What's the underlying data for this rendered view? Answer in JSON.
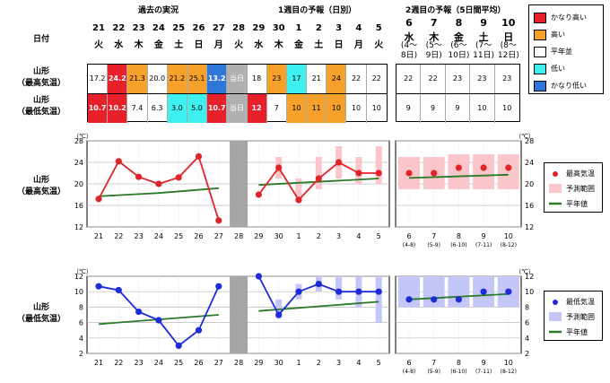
{
  "header": {
    "past_label": "過去の実況",
    "week1_label": "1週目の予報（日別）",
    "week2_label": "2週目の予報（5日間平均）",
    "date_label": "日付"
  },
  "days": [
    {
      "d": "21",
      "w": "火"
    },
    {
      "d": "22",
      "w": "水"
    },
    {
      "d": "23",
      "w": "木"
    },
    {
      "d": "24",
      "w": "金"
    },
    {
      "d": "25",
      "w": "土"
    },
    {
      "d": "26",
      "w": "日"
    },
    {
      "d": "27",
      "w": "月"
    },
    {
      "d": "28",
      "w": "火"
    },
    {
      "d": "29",
      "w": "水"
    },
    {
      "d": "30",
      "w": "木"
    },
    {
      "d": "1",
      "w": "金"
    },
    {
      "d": "2",
      "w": "土"
    },
    {
      "d": "3",
      "w": "日"
    },
    {
      "d": "4",
      "w": "月"
    },
    {
      "d": "5",
      "w": "火"
    }
  ],
  "week2_days": [
    {
      "d": "6",
      "w": "水",
      "l1": "(4～",
      "l2": "8日)"
    },
    {
      "d": "7",
      "w": "木",
      "l1": "(5～",
      "l2": "9日)"
    },
    {
      "d": "8",
      "w": "金",
      "l1": "(6～",
      "l2": "10日)"
    },
    {
      "d": "9",
      "w": "土",
      "l1": "(7～",
      "l2": "11日)"
    },
    {
      "d": "10",
      "w": "日",
      "l1": "(8～",
      "l2": "12日)"
    }
  ],
  "rows": {
    "max_label_1": "山形",
    "max_label_2": "（最高気温）",
    "min_label_1": "山形",
    "min_label_2": "（最低気温）",
    "max_values": [
      "17.2",
      "24.2",
      "21.3",
      "20.0",
      "21.2",
      "25.1",
      "13.2",
      "当日",
      "18",
      "23",
      "17",
      "21",
      "24",
      "22",
      "22"
    ],
    "max_colors": [
      "",
      "#e8202a",
      "#f5a12a",
      "",
      "#f5a12a",
      "#f5a12a",
      "#2f76d8",
      "#b0b0b0",
      "",
      "#f5a12a",
      "#3ef0f0",
      "",
      "#f5a12a",
      "",
      ""
    ],
    "min_values": [
      "10.7",
      "10.2",
      "7.4",
      "6.3",
      "3.0",
      "5.0",
      "10.7",
      "当日",
      "12",
      "7",
      "10",
      "11",
      "10",
      "10",
      "10"
    ],
    "min_colors": [
      "#e8202a",
      "#e8202a",
      "",
      "",
      "#3ef0f0",
      "#3ef0f0",
      "#e8202a",
      "#b0b0b0",
      "#e8202a",
      "",
      "#f5a12a",
      "#f5a12a",
      "#f5a12a",
      "",
      ""
    ],
    "w2_max_values": [
      "22",
      "22",
      "23",
      "23",
      "23"
    ],
    "w2_min_values": [
      "9",
      "9",
      "9",
      "10",
      "10"
    ]
  },
  "category_legend": [
    {
      "label": "かなり高い",
      "color": "#e8202a"
    },
    {
      "label": "高い",
      "color": "#f5a12a"
    },
    {
      "label": "平年並",
      "color": "#ffffff"
    },
    {
      "label": "低い",
      "color": "#3ef0f0"
    },
    {
      "label": "かなり低い",
      "color": "#2f76d8"
    }
  ],
  "chart_max_label_1": "山形",
  "chart_max_label_2": "（最高気温）",
  "chart_min_label_1": "山形",
  "chart_min_label_2": "（最低気温）",
  "legend_max": {
    "point": "最高気温",
    "range": "予測範囲",
    "normal": "平年値"
  },
  "legend_min": {
    "point": "最低気温",
    "range": "予測範囲",
    "normal": "平年値"
  },
  "chart_data": [
    {
      "type": "line",
      "title": "山形（最高気温）",
      "unit": "（℃）",
      "ylim": [
        12,
        28
      ],
      "yticks": [
        12,
        16,
        20,
        24,
        28
      ],
      "categories": [
        "21",
        "22",
        "23",
        "24",
        "25",
        "26",
        "27",
        "28",
        "29",
        "30",
        "1",
        "2",
        "3",
        "4",
        "5"
      ],
      "week2_categories": [
        "6",
        "7",
        "8",
        "9",
        "10"
      ],
      "week2_sublabels": [
        "(4-8)",
        "(5-9)",
        "(6-10)",
        "(7-11)",
        "(8-12)"
      ],
      "observed": [
        17.2,
        24.2,
        21.3,
        20.0,
        21.2,
        25.1,
        13.2
      ],
      "forecast": [
        18,
        23,
        17,
        21,
        24,
        22,
        22
      ],
      "forecast_range": [
        [
          18,
          18
        ],
        [
          21,
          25
        ],
        [
          17,
          21
        ],
        [
          19,
          25
        ],
        [
          21,
          27
        ],
        [
          20,
          25
        ],
        [
          20,
          27
        ]
      ],
      "normal_past": [
        17.7,
        18.3,
        19.2
      ],
      "normal_forecast": [
        19.8,
        21.0
      ],
      "week2_points": [
        22,
        22,
        23,
        23,
        23
      ],
      "week2_range": [
        [
          19,
          25
        ],
        [
          19,
          25
        ],
        [
          19,
          25.5
        ],
        [
          19,
          25.5
        ],
        [
          19,
          25.5
        ]
      ],
      "week2_normal": [
        21.1,
        21.7
      ],
      "color": "#e0242a",
      "range_color": "#fbc6ca"
    },
    {
      "type": "line",
      "title": "山形（最低気温）",
      "unit": "（℃）",
      "ylim": [
        2,
        12
      ],
      "yticks": [
        2,
        4,
        6,
        8,
        10,
        12
      ],
      "categories": [
        "21",
        "22",
        "23",
        "24",
        "25",
        "26",
        "27",
        "28",
        "29",
        "30",
        "1",
        "2",
        "3",
        "4",
        "5"
      ],
      "week2_categories": [
        "6",
        "7",
        "8",
        "9",
        "10"
      ],
      "week2_sublabels": [
        "(4-8)",
        "(5-9)",
        "(6-10)",
        "(7-11)",
        "(8-12)"
      ],
      "observed": [
        10.7,
        10.2,
        7.4,
        6.3,
        3.0,
        5.0,
        10.7
      ],
      "forecast": [
        12,
        7,
        10,
        11,
        10,
        10,
        10
      ],
      "forecast_range": [
        [
          12,
          12
        ],
        [
          6.5,
          9
        ],
        [
          9,
          11
        ],
        [
          10,
          12
        ],
        [
          9,
          12
        ],
        [
          8,
          12
        ],
        [
          6,
          12
        ]
      ],
      "normal_past": [
        5.8,
        6.4,
        7.0
      ],
      "normal_forecast": [
        7.5,
        8.7
      ],
      "week2_points": [
        9,
        9,
        9,
        10,
        10
      ],
      "week2_range": [
        [
          8,
          12
        ],
        [
          8,
          12
        ],
        [
          8,
          12
        ],
        [
          8,
          12
        ],
        [
          8,
          12
        ]
      ],
      "week2_normal": [
        9.0,
        9.7
      ],
      "color": "#1d2bd8",
      "range_color": "#c3c6f6"
    }
  ]
}
